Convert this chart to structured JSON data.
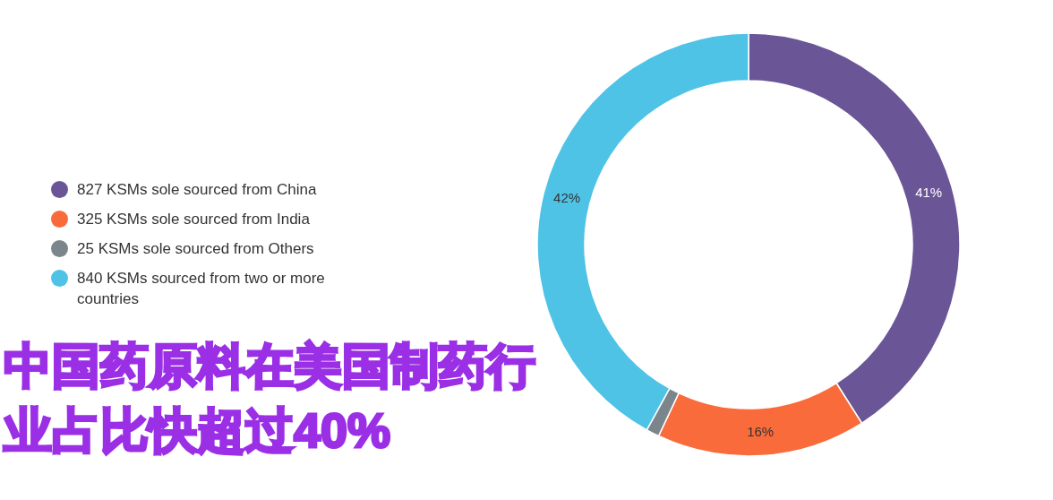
{
  "chart_data": {
    "type": "donut",
    "title": "中国药原料在美国制药行业占比快超过40%",
    "categories": [
      "827 KSMs sole sourced from China",
      "325 KSMs sole sourced from India",
      "25 KSMs sole sourced from Others",
      "840 KSMs sourced from two or more countries"
    ],
    "values": [
      41,
      16,
      1,
      42
    ],
    "colors": [
      "#6a5597",
      "#f96b3a",
      "#7b868c",
      "#4fc3e6"
    ],
    "value_labels": [
      "41%",
      "16%",
      null,
      "42%"
    ],
    "legend": "left"
  }
}
